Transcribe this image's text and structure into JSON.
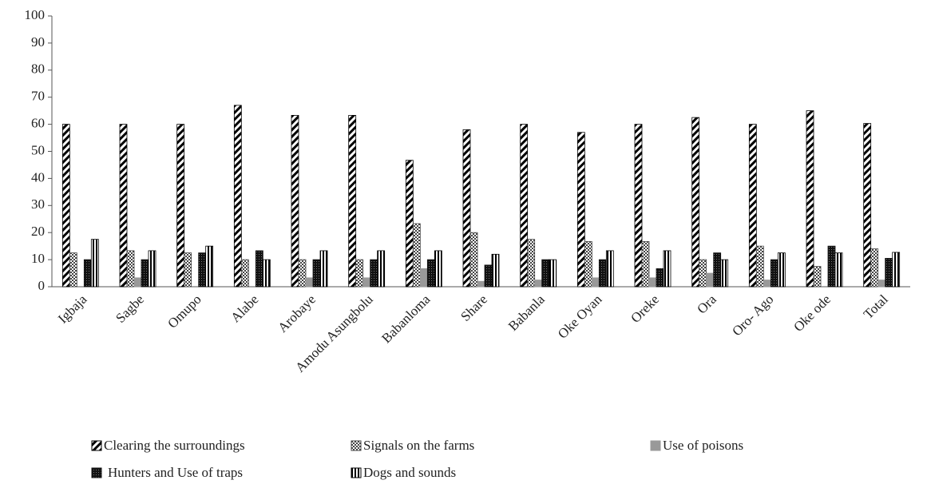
{
  "chart_data": {
    "type": "bar",
    "categories": [
      "Igbaja",
      "Sagbe",
      "Omupo",
      "Alabe",
      "Arobaye",
      "Amodu Asungbolu",
      "Babanloma",
      "Share",
      "Babanla",
      "Oke Oyan",
      "Oreke",
      "Ora",
      "Oro- Ago",
      "Oke ode",
      "Total"
    ],
    "series": [
      {
        "name": "Clearing the surroundings",
        "color": "#000000",
        "values": [
          60,
          60,
          60,
          67,
          63.3,
          63.3,
          46.7,
          58,
          60,
          57,
          60,
          62.5,
          60,
          65,
          60.3
        ]
      },
      {
        "name": "Signals on the farms",
        "color": "#444444",
        "values": [
          12.5,
          13.3,
          12.5,
          10,
          10,
          10,
          23.3,
          20,
          17.5,
          16.7,
          16.7,
          10,
          15,
          7.5,
          14
        ]
      },
      {
        "name": "Use of poisons",
        "color": "#999999",
        "values": [
          0,
          3.3,
          0,
          0,
          3.3,
          3.3,
          6.7,
          2,
          2.5,
          3.3,
          3.3,
          5,
          2.5,
          0,
          2.5
        ]
      },
      {
        "name": "Hunters and Use of traps",
        "color": "#111111",
        "values": [
          10,
          10,
          12.5,
          13.3,
          10,
          10,
          10,
          8,
          10,
          10,
          6.7,
          12.5,
          10,
          15,
          10.5
        ]
      },
      {
        "name": "Dogs and sounds",
        "color": "#000000",
        "values": [
          17.5,
          13.3,
          15,
          10,
          13.3,
          13.3,
          13.3,
          12,
          10,
          13.3,
          13.3,
          10,
          12.5,
          12.5,
          12.7
        ]
      }
    ],
    "ylim": [
      0,
      100
    ],
    "yticks": [
      0,
      10,
      20,
      30,
      40,
      50,
      60,
      70,
      80,
      90,
      100
    ],
    "grid": false
  }
}
